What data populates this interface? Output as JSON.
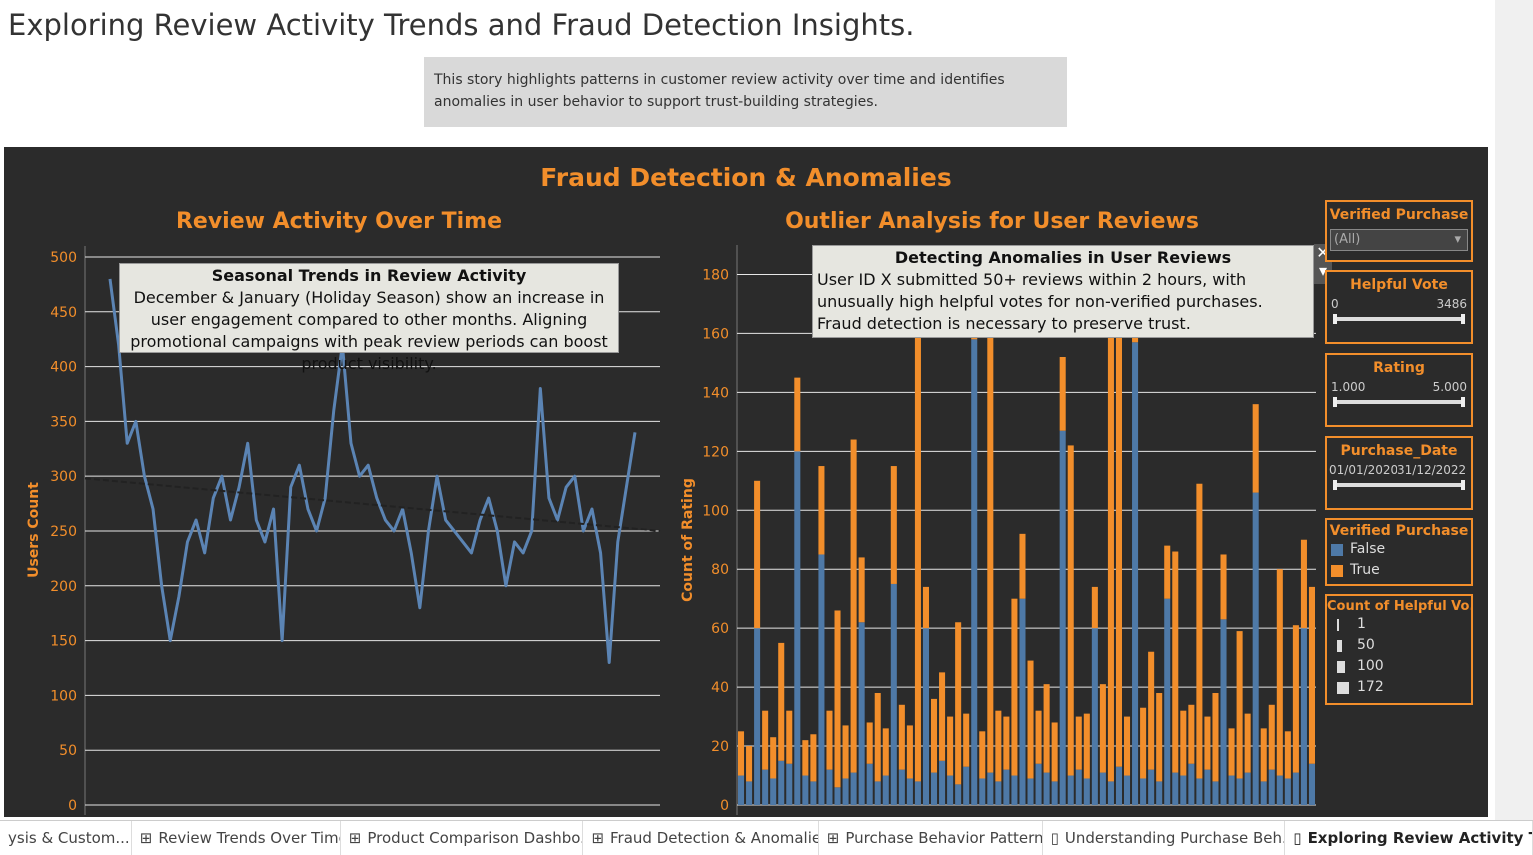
{
  "title": "Exploring Review Activity Trends and Fraud Detection Insights.",
  "description": "This story highlights patterns in customer review activity over time and identifies anomalies in user behavior to support trust-building strategies.",
  "dashboard_title": "Fraud Detection & Anomalies",
  "chart_data": [
    {
      "type": "line",
      "title": "Review Activity Over Time",
      "y_label": "Users Count",
      "color": "#5b84b4",
      "values": [
        480,
        420,
        330,
        350,
        300,
        270,
        200,
        150,
        190,
        240,
        260,
        230,
        280,
        300,
        260,
        290,
        330,
        260,
        240,
        270,
        150,
        290,
        310,
        270,
        250,
        280,
        360,
        420,
        330,
        300,
        310,
        280,
        260,
        250,
        270,
        230,
        180,
        250,
        300,
        260,
        250,
        240,
        230,
        260,
        280,
        250,
        200,
        240,
        230,
        250,
        380,
        280,
        260,
        290,
        300,
        250,
        270,
        230,
        130,
        240,
        290,
        340
      ],
      "trend_line": {
        "start": 298,
        "end": 250
      },
      "ylim": [
        0,
        510
      ],
      "yticks": [
        0,
        50,
        100,
        150,
        200,
        250,
        300,
        350,
        400,
        450,
        500
      ],
      "grid": true,
      "annotation": {
        "title": "Seasonal Trends in Review Activity",
        "text": "December & January (Holiday Season) show an increase in user engagement compared to other months. Aligning promotional campaigns with peak review periods can boost product visibility."
      }
    },
    {
      "type": "bar",
      "title": "Outlier Analysis for User Reviews",
      "y_label": "Count of Rating",
      "stacked": true,
      "series": [
        {
          "name": "False",
          "color": "#4e79a7",
          "values": [
            10,
            8,
            60,
            12,
            9,
            15,
            14,
            120,
            10,
            8,
            85,
            12,
            6,
            9,
            11,
            62,
            14,
            8,
            10,
            75,
            12,
            9,
            8,
            60,
            11,
            15,
            10,
            7,
            13,
            158,
            9,
            11,
            8,
            12,
            10,
            70,
            9,
            14,
            11,
            8,
            127,
            10,
            12,
            9,
            60,
            11,
            8,
            13,
            10,
            157,
            9,
            12,
            8,
            70,
            11,
            10,
            14,
            9,
            12,
            8,
            63,
            10,
            9,
            11,
            106,
            8,
            12,
            10,
            9,
            11,
            60,
            14
          ]
        },
        {
          "name": "True",
          "color": "#f28e2b",
          "values": [
            15,
            12,
            50,
            20,
            14,
            40,
            18,
            25,
            12,
            16,
            30,
            20,
            60,
            18,
            113,
            22,
            14,
            30,
            16,
            40,
            22,
            18,
            178,
            14,
            25,
            30,
            20,
            55,
            18,
            20,
            16,
            150,
            24,
            18,
            60,
            22,
            40,
            18,
            30,
            20,
            25,
            112,
            18,
            22,
            14,
            30,
            153,
            160,
            20,
            18,
            24,
            40,
            30,
            18,
            75,
            22,
            20,
            100,
            18,
            30,
            22,
            16,
            50,
            20,
            30,
            18,
            22,
            70,
            16,
            50,
            30,
            60
          ]
        }
      ],
      "ylim": [
        0,
        190
      ],
      "yticks": [
        0,
        20,
        40,
        60,
        80,
        100,
        120,
        140,
        160,
        180
      ],
      "grid": true,
      "annotation": {
        "title": "Detecting Anomalies in User Reviews",
        "text": "User ID X submitted 50+ reviews within 2 hours, with unusually high helpful votes for non-verified purchases. Fraud detection is necessary to preserve trust."
      }
    }
  ],
  "filters": {
    "verified": {
      "title": "Verified Purchase",
      "selected": "(All)"
    },
    "helpful": {
      "title": "Helpful Vote",
      "min": "0",
      "max": "3486"
    },
    "rating": {
      "title": "Rating",
      "min": "1.000",
      "max": "5.000"
    },
    "date": {
      "title": "Purchase_Date",
      "min": "01/01/2020",
      "max": "31/12/2022"
    }
  },
  "size_legend": {
    "title": "Count of Helpful Vo..",
    "values": [
      1,
      50,
      100,
      172
    ]
  },
  "tabs": [
    "ysis & Custom...",
    "Review Trends Over Time",
    "Product Comparison Dashbo...",
    "Fraud Detection & Anomalies",
    "Purchase Behavior Patterns",
    "Understanding Purchase Beh...",
    "Exploring Review Activity Tr"
  ]
}
